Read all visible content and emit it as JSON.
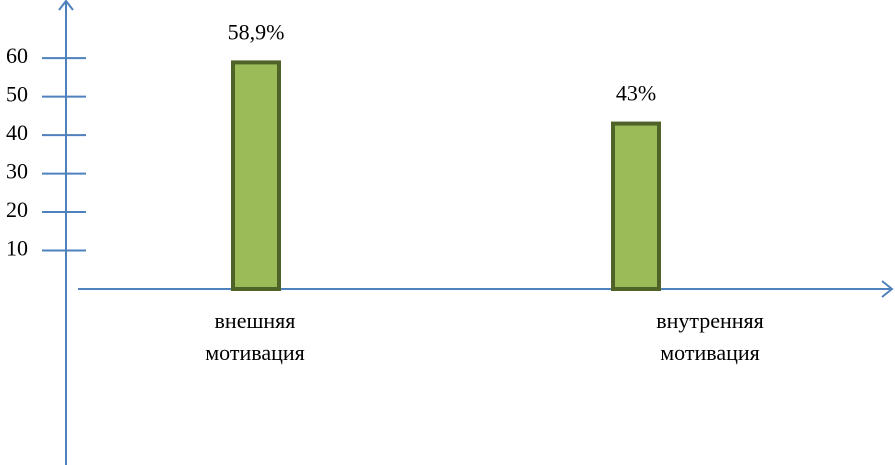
{
  "chart_data": {
    "type": "bar",
    "categories": [
      "внешняя\nмотивация",
      "внутренняя\nмотивация"
    ],
    "values": [
      58.9,
      43
    ],
    "value_labels": [
      "58,9%",
      "43%"
    ],
    "color": "#9bbb59",
    "edge_color": "#4f6228",
    "axis_color": "#4f81bd",
    "ylim": [
      0,
      72
    ],
    "yticks": [
      10,
      20,
      30,
      40,
      50,
      60
    ],
    "grid": false
  }
}
